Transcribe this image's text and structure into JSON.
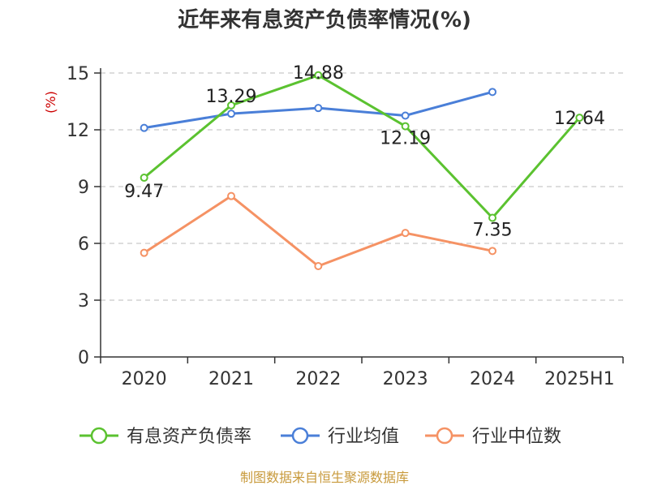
{
  "chart_data": {
    "type": "line",
    "title": "近年来有息资产负债率情况(%)",
    "ylabel": "(%)",
    "categories": [
      "2020",
      "2021",
      "2022",
      "2023",
      "2024",
      "2025H1"
    ],
    "ylim": [
      0,
      15
    ],
    "yticks": [
      0,
      3,
      6,
      9,
      12,
      15
    ],
    "grid": "horizontal dashed",
    "legend_position": "bottom",
    "series": [
      {
        "name": "有息资产负债率",
        "color": "#5bc230",
        "values": [
          9.47,
          13.29,
          14.88,
          12.19,
          7.35,
          12.64
        ],
        "data_labels": [
          "9.47",
          "13.29",
          "14.88",
          "12.19",
          "7.35",
          "12.64"
        ]
      },
      {
        "name": "行业均值",
        "color": "#4a7fd8",
        "values": [
          12.1,
          12.85,
          13.15,
          12.75,
          14.0,
          null
        ],
        "data_labels": null
      },
      {
        "name": "行业中位数",
        "color": "#f59264",
        "values": [
          5.5,
          8.5,
          4.8,
          6.55,
          5.6,
          null
        ],
        "data_labels": null
      }
    ],
    "source": "制图数据来自恒生聚源数据库",
    "colors": {
      "ylabel": "#cc0000",
      "source": "#c89a3c",
      "axis": "#333333",
      "grid": "#bbbbbb"
    }
  }
}
